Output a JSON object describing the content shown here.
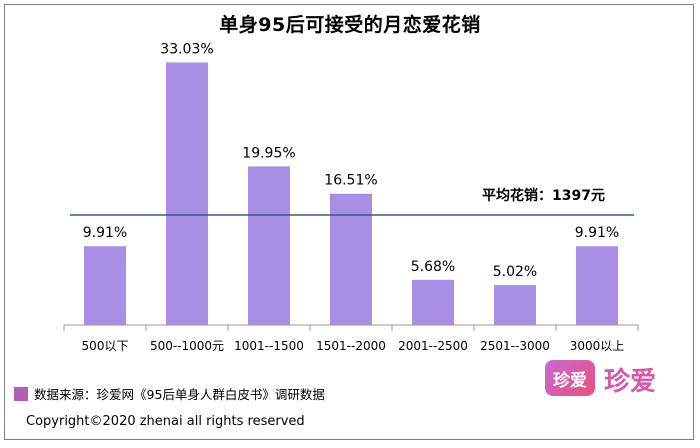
{
  "chart_data": {
    "type": "bar",
    "title": "单身95后可接受的月恋爱花销",
    "categories": [
      "500以下",
      "500--1000元",
      "1001--1500",
      "1501--2000",
      "2001--2500",
      "2501--3000",
      "3000以上"
    ],
    "values": [
      9.91,
      33.03,
      19.95,
      16.51,
      5.68,
      5.02,
      9.91
    ],
    "value_labels": [
      "9.91%",
      "33.03%",
      "19.95%",
      "16.51%",
      "5.68%",
      "5.02%",
      "9.91%"
    ],
    "ylim": [
      0,
      40
    ],
    "grid": false,
    "bar_color": "#a98ee6",
    "reference_line": {
      "label": "平均花销：1397元",
      "color": "#3d5a80"
    }
  },
  "footer": {
    "source": "数据来源：珍爱网《95后单身人群白皮书》调研数据",
    "source_swatch_color": "#b15fb8",
    "copyright": "Copyright©2020 zhenai all rights reserved"
  },
  "logo": {
    "icon_text": "珍爱",
    "text": "珍爱"
  }
}
